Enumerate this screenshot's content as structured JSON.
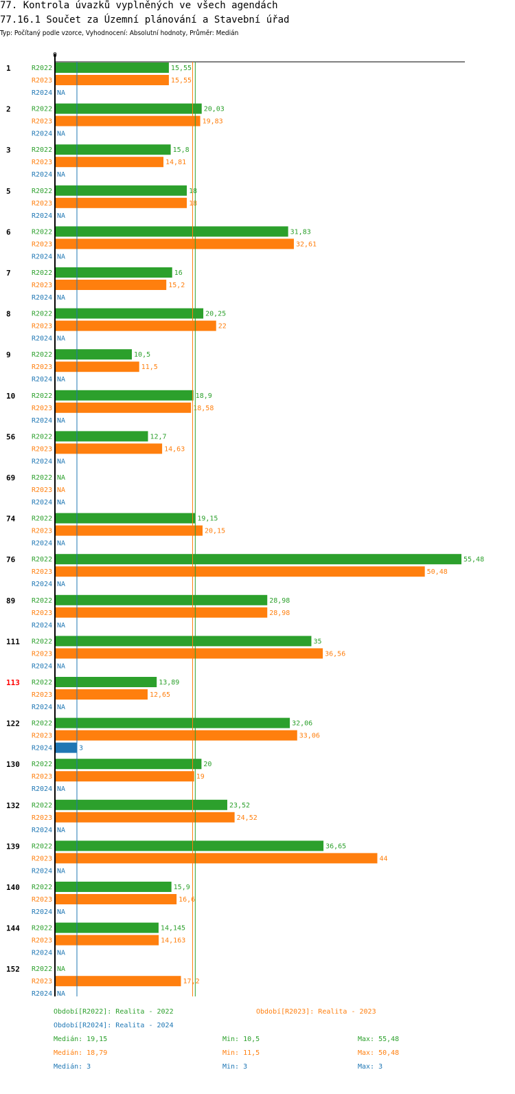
{
  "title": "77. Kontrola úvazků vyplněných ve všech agendách",
  "subtitle": "77.16.1 Součet za Územní plánování a Stavební úřad",
  "type_line": "Typ: Počítaný podle vzorce, Vyhodnocení: Absolutní hodnoty, Průměr: Medián",
  "colors": {
    "R2022": "#2ca02c",
    "R2023": "#ff7f0e",
    "R2024": "#1f77b4",
    "highlight": "#ff0000",
    "axis": "#000000"
  },
  "chart_data": {
    "type": "bar",
    "orientation": "horizontal",
    "axis_zero_label": "0",
    "series_names": [
      "R2022",
      "R2023",
      "R2024"
    ],
    "na_label": "NA",
    "categories": [
      {
        "id": "1",
        "highlight": false,
        "values": [
          15.55,
          15.55,
          null
        ],
        "labels": [
          "15,55",
          "15,55",
          "NA"
        ]
      },
      {
        "id": "2",
        "highlight": false,
        "values": [
          20.03,
          19.83,
          null
        ],
        "labels": [
          "20,03",
          "19,83",
          "NA"
        ]
      },
      {
        "id": "3",
        "highlight": false,
        "values": [
          15.8,
          14.81,
          null
        ],
        "labels": [
          "15,8",
          "14,81",
          "NA"
        ]
      },
      {
        "id": "5",
        "highlight": false,
        "values": [
          18,
          18,
          null
        ],
        "labels": [
          "18",
          "18",
          "NA"
        ]
      },
      {
        "id": "6",
        "highlight": false,
        "values": [
          31.83,
          32.61,
          null
        ],
        "labels": [
          "31,83",
          "32,61",
          "NA"
        ]
      },
      {
        "id": "7",
        "highlight": false,
        "values": [
          16,
          15.2,
          null
        ],
        "labels": [
          "16",
          "15,2",
          "NA"
        ]
      },
      {
        "id": "8",
        "highlight": false,
        "values": [
          20.25,
          22,
          null
        ],
        "labels": [
          "20,25",
          "22",
          "NA"
        ]
      },
      {
        "id": "9",
        "highlight": false,
        "values": [
          10.5,
          11.5,
          null
        ],
        "labels": [
          "10,5",
          "11,5",
          "NA"
        ]
      },
      {
        "id": "10",
        "highlight": false,
        "values": [
          18.9,
          18.58,
          null
        ],
        "labels": [
          "18,9",
          "18,58",
          "NA"
        ]
      },
      {
        "id": "56",
        "highlight": false,
        "values": [
          12.7,
          14.63,
          null
        ],
        "labels": [
          "12,7",
          "14,63",
          "NA"
        ]
      },
      {
        "id": "69",
        "highlight": false,
        "values": [
          null,
          null,
          null
        ],
        "labels": [
          "NA",
          "NA",
          "NA"
        ]
      },
      {
        "id": "74",
        "highlight": false,
        "values": [
          19.15,
          20.15,
          null
        ],
        "labels": [
          "19,15",
          "20,15",
          "NA"
        ]
      },
      {
        "id": "76",
        "highlight": false,
        "values": [
          55.48,
          50.48,
          null
        ],
        "labels": [
          "55,48",
          "50,48",
          "NA"
        ]
      },
      {
        "id": "89",
        "highlight": false,
        "values": [
          28.98,
          28.98,
          null
        ],
        "labels": [
          "28,98",
          "28,98",
          "NA"
        ]
      },
      {
        "id": "111",
        "highlight": false,
        "values": [
          35,
          36.56,
          null
        ],
        "labels": [
          "35",
          "36,56",
          "NA"
        ]
      },
      {
        "id": "113",
        "highlight": true,
        "values": [
          13.89,
          12.65,
          null
        ],
        "labels": [
          "13,89",
          "12,65",
          "NA"
        ]
      },
      {
        "id": "122",
        "highlight": false,
        "values": [
          32.06,
          33.06,
          3
        ],
        "labels": [
          "32,06",
          "33,06",
          "3"
        ]
      },
      {
        "id": "130",
        "highlight": false,
        "values": [
          20,
          19,
          null
        ],
        "labels": [
          "20",
          "19",
          "NA"
        ]
      },
      {
        "id": "132",
        "highlight": false,
        "values": [
          23.52,
          24.52,
          null
        ],
        "labels": [
          "23,52",
          "24,52",
          "NA"
        ]
      },
      {
        "id": "139",
        "highlight": false,
        "values": [
          36.65,
          44,
          null
        ],
        "labels": [
          "36,65",
          "44",
          "NA"
        ]
      },
      {
        "id": "140",
        "highlight": false,
        "values": [
          15.9,
          16.6,
          null
        ],
        "labels": [
          "15,9",
          "16,6",
          "NA"
        ]
      },
      {
        "id": "144",
        "highlight": false,
        "values": [
          14.145,
          14.163,
          null
        ],
        "labels": [
          "14,145",
          "14,163",
          "NA"
        ]
      },
      {
        "id": "152",
        "highlight": false,
        "values": [
          null,
          17.2,
          null
        ],
        "labels": [
          "NA",
          "17,2",
          "NA"
        ]
      }
    ],
    "medians": [
      19.15,
      18.79,
      3
    ],
    "xlim": [
      0,
      56
    ],
    "legend": [
      "Období[R2022]: Realita - 2022",
      "Období[R2023]: Realita - 2023",
      "Období[R2024]: Realita - 2024"
    ],
    "stats": [
      {
        "median": "Medián: 19,15",
        "min": "Min: 10,5",
        "max": "Max: 55,48"
      },
      {
        "median": "Medián: 18,79",
        "min": "Min: 11,5",
        "max": "Max: 50,48"
      },
      {
        "median": "Medián: 3",
        "min": "Min: 3",
        "max": "Max: 3"
      }
    ]
  }
}
